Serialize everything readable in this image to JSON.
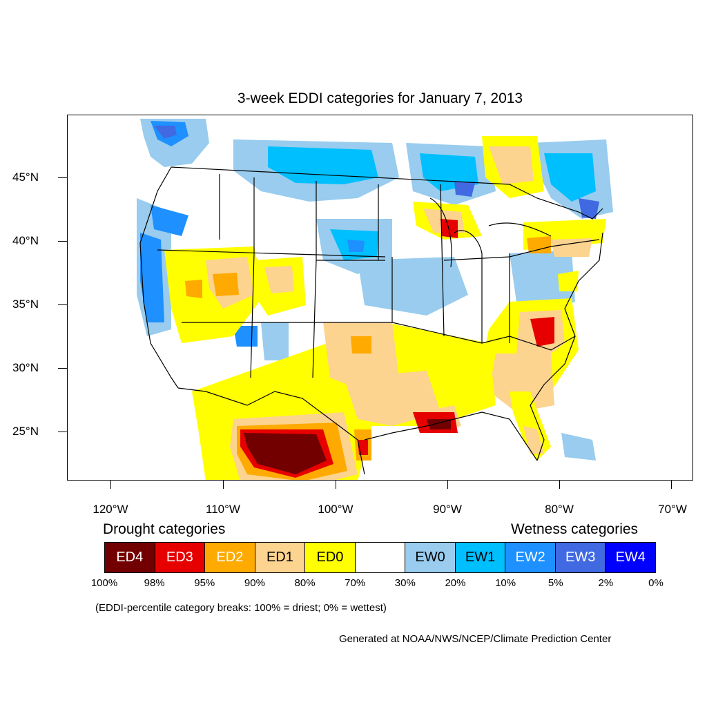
{
  "title": "3-week EDDI categories for January 7, 2013",
  "map": {
    "lat_labels": [
      "45°N",
      "40°N",
      "35°N",
      "30°N",
      "25°N"
    ],
    "lon_labels": [
      "120°W",
      "110°W",
      "100°W",
      "90°W",
      "80°W",
      "70°W"
    ]
  },
  "legend": {
    "drought_heading": "Drought categories",
    "wetness_heading": "Wetness categories",
    "categories": [
      {
        "label": "ED4",
        "color": "#730000",
        "text_color": "#ffffff"
      },
      {
        "label": "ED3",
        "color": "#e60000",
        "text_color": "#ffffff"
      },
      {
        "label": "ED2",
        "color": "#ffaa00",
        "text_color": "#ffffff"
      },
      {
        "label": "ED1",
        "color": "#fcd38f",
        "text_color": "#000000"
      },
      {
        "label": "ED0",
        "color": "#ffff00",
        "text_color": "#000000"
      },
      {
        "label": "",
        "color": "#ffffff",
        "text_color": "#000000"
      },
      {
        "label": "EW0",
        "color": "#99ccee",
        "text_color": "#000000"
      },
      {
        "label": "EW1",
        "color": "#00bfff",
        "text_color": "#000000"
      },
      {
        "label": "EW2",
        "color": "#1e90ff",
        "text_color": "#ffffff"
      },
      {
        "label": "EW3",
        "color": "#4169e1",
        "text_color": "#ffffff"
      },
      {
        "label": "EW4",
        "color": "#0000ff",
        "text_color": "#ffffff"
      }
    ],
    "percentiles": [
      "100%",
      "98%",
      "95%",
      "90%",
      "80%",
      "70%",
      "30%",
      "20%",
      "10%",
      "5%",
      "2%",
      "0%"
    ]
  },
  "note": "(EDDI-percentile category breaks: 100% = driest; 0% = wettest)",
  "credit": "Generated at NOAA/NWS/NCEP/Climate Prediction Center"
}
